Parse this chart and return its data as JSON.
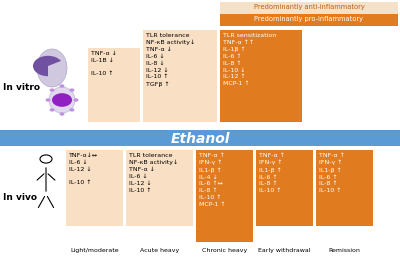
{
  "bg_color": "#ffffff",
  "peach_color": "#f9dfc4",
  "orange_color": "#e07b20",
  "blue_color": "#5b9bd5",
  "legend_anti_color": "#f5e0c8",
  "legend_pro_color": "#e07b20",
  "legend_anti_text": "Predominantly anti-inflammatory",
  "legend_pro_text": "Predominantly pro-inflammatory",
  "ethanol_label": "Ethanol",
  "invitro_label": "In vitro",
  "invivo_label": "In vivo",
  "vitro_box1_text": "TNF-α ↓\nIL-1B ↓\n\nIL-10 ↑",
  "vitro_box2_text": "TLR tolerance\nNF-κB activity↓\nTNF-α ↓\nIL-6 ↓\nIL-8 ↓\nIL-12 ↓\nIL-10 ↑\nTGFβ ↑",
  "vitro_box3_text": "TLR sensitization\nTNF-α ↑↑\nIL-1β ↑\nIL-6 ↑\nIL-8 ↑\nIL-10 ↓\nIL-12 ↑\nMCP-1 ↑",
  "vivo_box1_text": "TNF-α↓↔\nIL-6 ↓\nIL-12 ↓\n\nIL-10 ↑",
  "vivo_box2_text": "TLR tolerance\nNF-κB activity↓\nTNF-α ↓\nIL-6 ↓\nIL-12 ↓\nIL-10 ↑",
  "vivo_box3_text": "TNF-α ↑\nIFN-γ ↑\nIL1-β ↑\nIL-4 ↓\nIL-6 ↑↔\nIL-8 ↑\nIL-10 ↑\nMCP-1 ↑",
  "vivo_box4_text": "TNF-α ↑\nIFN-γ ↑\nIL1-β ↑\nIL-6 ↑\nIL-8 ↑\nIL-10 ↑",
  "vivo_box5_text": "TNF-α ↑\nIFN-γ ↑\nIL1-β ↑\nIL-6 ↑\nIL-8 ↑\nIL-10 ↑",
  "label_light": "Light/moderate",
  "label_acute": "Acute heavy",
  "label_chronic": "Chronic heavy",
  "label_early": "Early withdrawal",
  "label_remission": "Remission"
}
